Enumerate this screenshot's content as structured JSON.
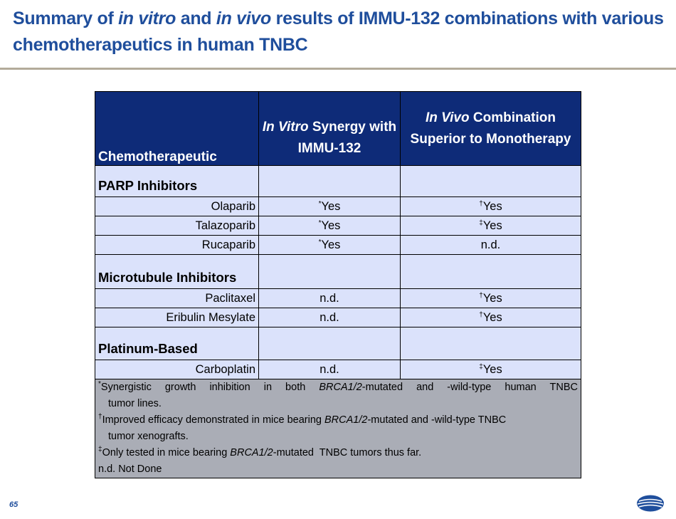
{
  "title": {
    "part1": "Summary of ",
    "part2": "in vitro",
    "part3": " and ",
    "part4": "in vivo",
    "part5": " results of IMMU-132 combinations with various chemotherapeutics in human TNBC"
  },
  "table": {
    "headers": {
      "col1": "Chemotherapeutic",
      "col2_italic": "In Vitro",
      "col2_rest": " Synergy with IMMU-132",
      "col3_italic": "In Vivo",
      "col3_rest": " Combination Superior to Monotherapy"
    },
    "groups": [
      {
        "category": "PARP Inhibitors",
        "rows": [
          {
            "name": "Olaparib",
            "vitro_mark": "*",
            "vitro": "Yes",
            "vivo_mark": "†",
            "vivo": "Yes"
          },
          {
            "name": "Talazoparib",
            "vitro_mark": "*",
            "vitro": "Yes",
            "vivo_mark": "‡",
            "vivo": "Yes"
          },
          {
            "name": "Rucaparib",
            "vitro_mark": "*",
            "vitro": "Yes",
            "vivo_mark": "",
            "vivo": "n.d."
          }
        ]
      },
      {
        "category": "Microtubule Inhibitors",
        "rows": [
          {
            "name": "Paclitaxel",
            "vitro_mark": "",
            "vitro": "n.d.",
            "vivo_mark": "†",
            "vivo": "Yes"
          },
          {
            "name": "Eribulin Mesylate",
            "vitro_mark": "",
            "vitro": "n.d.",
            "vivo_mark": "†",
            "vivo": "Yes"
          }
        ]
      },
      {
        "category": "Platinum-Based",
        "rows": [
          {
            "name": "Carboplatin",
            "vitro_mark": "",
            "vitro": "n.d.",
            "vivo_mark": "‡",
            "vivo": "Yes"
          }
        ]
      }
    ],
    "footnotes": {
      "n1": {
        "mark": "*",
        "a": "Synergistic growth inhibition in both ",
        "gene": "BRCA1/2",
        "b": "-mutated and -wild-type human TNBC",
        "c": "tumor lines."
      },
      "n2": {
        "mark": "†",
        "a": "Improved efficacy demonstrated in mice bearing ",
        "gene": "BRCA1/2",
        "b": "-mutated and -wild-type TNBC",
        "c": "tumor xenografts."
      },
      "n3": {
        "mark": "‡",
        "a": "Only tested in mice bearing ",
        "gene": "BRCA1/2",
        "b": "-mutated  TNBC tumors thus far."
      },
      "n4": {
        "text": "n.d. Not Done"
      }
    }
  },
  "page_number": "65",
  "logo": {
    "icon": "company-logo-icon",
    "color": "#1f4e9c"
  }
}
